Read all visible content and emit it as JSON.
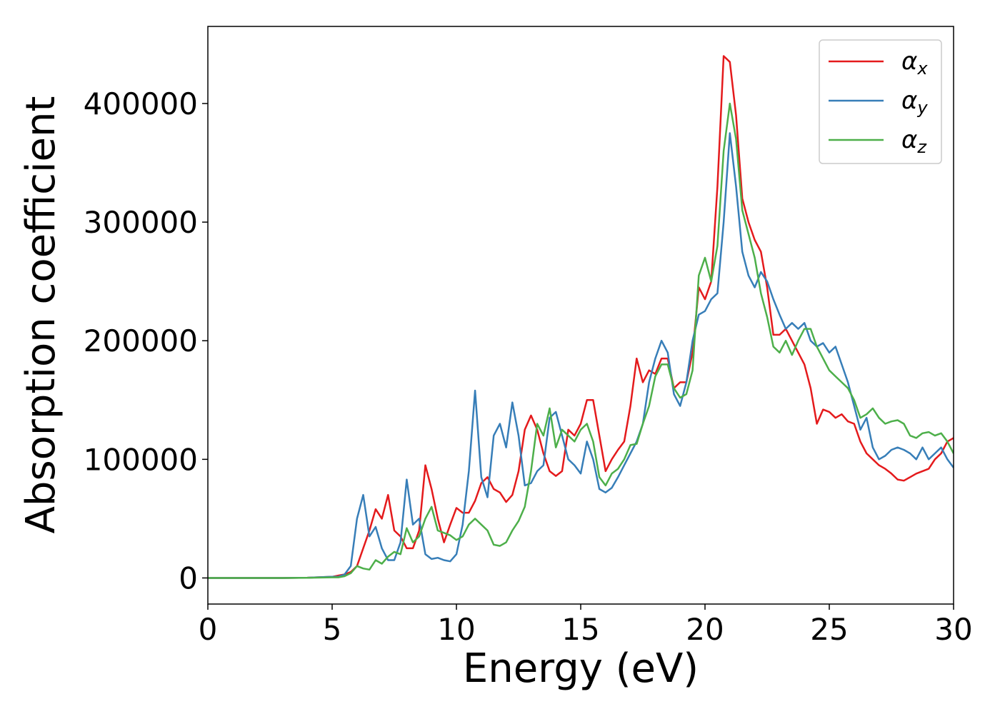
{
  "chart_data": {
    "type": "line",
    "xlabel": "Energy (eV)",
    "ylabel": "Absorption coefficient",
    "xlim": [
      0,
      30
    ],
    "xticks": [
      0,
      5,
      10,
      15,
      20,
      25,
      30
    ],
    "ylim": [
      -22000,
      465000
    ],
    "yticks": [
      0,
      100000,
      200000,
      300000,
      400000
    ],
    "grid": false,
    "legend": "upper right",
    "x": [
      0,
      1,
      2,
      3,
      4,
      5,
      5.25,
      5.5,
      5.75,
      6,
      6.25,
      6.5,
      6.75,
      7,
      7.25,
      7.5,
      7.75,
      8,
      8.25,
      8.5,
      8.75,
      9,
      9.25,
      9.5,
      9.75,
      10,
      10.25,
      10.5,
      10.75,
      11,
      11.25,
      11.5,
      11.75,
      12,
      12.25,
      12.5,
      12.75,
      13,
      13.25,
      13.5,
      13.75,
      14,
      14.25,
      14.5,
      14.75,
      15,
      15.25,
      15.5,
      15.75,
      16,
      16.25,
      16.5,
      16.75,
      17,
      17.25,
      17.5,
      17.75,
      18,
      18.25,
      18.5,
      18.75,
      19,
      19.25,
      19.5,
      19.75,
      20,
      20.25,
      20.5,
      20.75,
      21,
      21.25,
      21.5,
      21.75,
      22,
      22.25,
      22.5,
      22.75,
      23,
      23.25,
      23.5,
      23.75,
      24,
      24.25,
      24.5,
      24.75,
      25,
      25.25,
      25.5,
      25.75,
      26,
      26.25,
      26.5,
      26.75,
      27,
      27.25,
      27.5,
      27.75,
      28,
      28.25,
      28.5,
      28.75,
      29,
      29.25,
      29.5,
      29.75,
      30
    ],
    "series": [
      {
        "name": "αx",
        "color": "#e41a1c",
        "values": [
          0,
          0,
          0,
          0,
          200,
          1000,
          2000,
          3000,
          5000,
          10000,
          25000,
          40000,
          58000,
          50000,
          70000,
          40000,
          35000,
          25000,
          25000,
          40000,
          95000,
          75000,
          50000,
          30000,
          45000,
          59000,
          55000,
          55000,
          65000,
          80000,
          85000,
          75000,
          72000,
          64000,
          70000,
          90000,
          125000,
          137000,
          125000,
          105000,
          90000,
          86000,
          90000,
          125000,
          120000,
          130000,
          150000,
          150000,
          120000,
          90000,
          100000,
          108000,
          115000,
          145000,
          185000,
          165000,
          175000,
          172000,
          185000,
          185000,
          160000,
          165000,
          165000,
          190000,
          245000,
          235000,
          250000,
          330000,
          440000,
          435000,
          390000,
          320000,
          300000,
          285000,
          275000,
          245000,
          205000,
          205000,
          210000,
          200000,
          190000,
          180000,
          160000,
          130000,
          142000,
          140000,
          135000,
          138000,
          132000,
          130000,
          115000,
          105000,
          100000,
          95000,
          92000,
          88000,
          83000,
          82000,
          85000,
          88000,
          90000,
          92000,
          100000,
          105000,
          115000,
          118000
        ]
      },
      {
        "name": "αy",
        "color": "#377eb8",
        "values": [
          0,
          0,
          0,
          0,
          200,
          1000,
          1000,
          3000,
          10000,
          50000,
          70000,
          35000,
          43000,
          25000,
          15000,
          15000,
          30000,
          83000,
          45000,
          50000,
          20000,
          16000,
          17000,
          15000,
          14000,
          20000,
          45000,
          90000,
          158000,
          85000,
          68000,
          120000,
          130000,
          110000,
          148000,
          120000,
          78000,
          80000,
          90000,
          95000,
          135000,
          140000,
          120000,
          100000,
          95000,
          88000,
          115000,
          100000,
          75000,
          72000,
          76000,
          85000,
          95000,
          105000,
          115000,
          130000,
          165000,
          185000,
          200000,
          190000,
          155000,
          145000,
          165000,
          200000,
          222000,
          225000,
          235000,
          240000,
          300000,
          375000,
          330000,
          275000,
          255000,
          245000,
          258000,
          250000,
          235000,
          222000,
          210000,
          215000,
          210000,
          215000,
          200000,
          195000,
          198000,
          190000,
          195000,
          180000,
          165000,
          145000,
          125000,
          135000,
          110000,
          100000,
          103000,
          108000,
          110000,
          108000,
          105000,
          100000,
          110000,
          100000,
          105000,
          110000,
          100000,
          93000
        ]
      },
      {
        "name": "αz",
        "color": "#4daf4a",
        "values": [
          0,
          0,
          0,
          0,
          100,
          500,
          500,
          1500,
          4000,
          10000,
          8000,
          7000,
          15000,
          12000,
          18000,
          22000,
          20000,
          42000,
          30000,
          35000,
          50000,
          60000,
          40000,
          38000,
          36000,
          32000,
          35000,
          45000,
          50000,
          45000,
          40000,
          28000,
          27000,
          30000,
          40000,
          48000,
          60000,
          90000,
          130000,
          120000,
          143000,
          110000,
          125000,
          120000,
          115000,
          125000,
          130000,
          115000,
          85000,
          78000,
          88000,
          92000,
          100000,
          112000,
          113000,
          130000,
          145000,
          170000,
          180000,
          180000,
          160000,
          152000,
          155000,
          175000,
          255000,
          270000,
          250000,
          280000,
          360000,
          400000,
          370000,
          310000,
          290000,
          270000,
          240000,
          220000,
          195000,
          190000,
          200000,
          188000,
          200000,
          210000,
          210000,
          195000,
          185000,
          175000,
          170000,
          165000,
          160000,
          150000,
          135000,
          138000,
          143000,
          135000,
          130000,
          132000,
          133000,
          130000,
          120000,
          118000,
          122000,
          123000,
          120000,
          122000,
          115000,
          105000
        ]
      }
    ]
  }
}
